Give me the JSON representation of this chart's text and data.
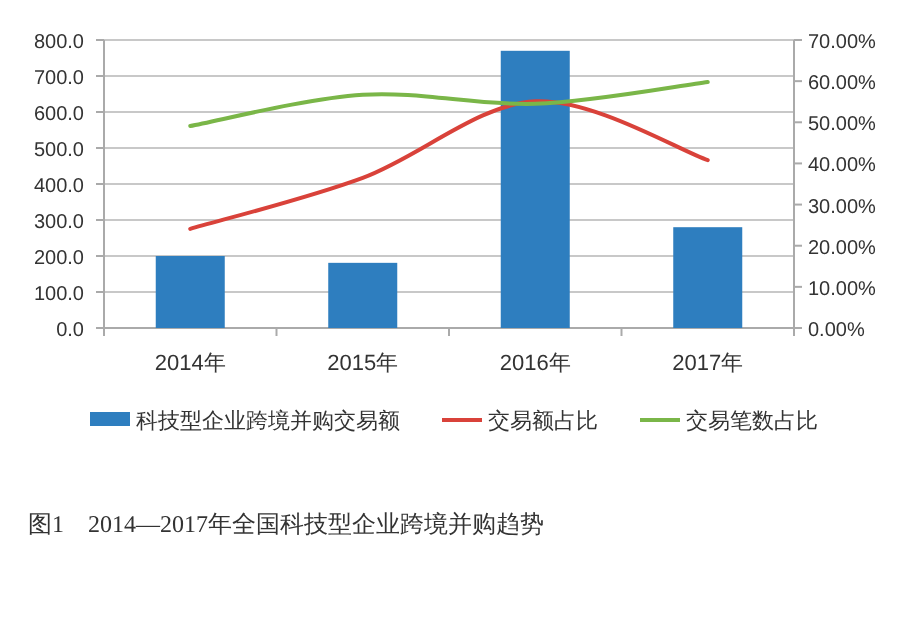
{
  "chart_data": {
    "type": "bar",
    "title": "图1　2014—2017年全国科技型企业跨境并购趋势",
    "categories": [
      "2014年",
      "2015年",
      "2016年",
      "2017年"
    ],
    "series": [
      {
        "name": "科技型企业跨境并购交易额",
        "color": "#2e7ebf",
        "values": [
          200,
          181,
          770,
          280
        ]
      },
      {
        "name": "交易额占比",
        "type": "line",
        "axis": "y2",
        "color": "#d9423a",
        "values": [
          24.1,
          36.5,
          55.1,
          40.8
        ]
      },
      {
        "name": "交易笔数占比",
        "type": "line",
        "axis": "y2",
        "color": "#7ab648",
        "values": [
          49.1,
          56.7,
          54.5,
          59.8
        ]
      }
    ],
    "ylim": [
      0,
      800
    ],
    "yticks": [
      {
        "value": 0,
        "label": "0.0"
      },
      {
        "value": 100,
        "label": "100.0"
      },
      {
        "value": 200,
        "label": "200.0"
      },
      {
        "value": 300,
        "label": "300.0"
      },
      {
        "value": 400,
        "label": "400.0"
      },
      {
        "value": 500,
        "label": "500.0"
      },
      {
        "value": 600,
        "label": "600.0"
      },
      {
        "value": 700,
        "label": "700.0"
      },
      {
        "value": 800,
        "label": "800.0"
      }
    ],
    "y2lim": [
      0,
      70
    ],
    "y2ticks": [
      {
        "value": 0,
        "label": "0.00%"
      },
      {
        "value": 10,
        "label": "10.00%"
      },
      {
        "value": 20,
        "label": "20.00%"
      },
      {
        "value": 30,
        "label": "30.00%"
      },
      {
        "value": 40,
        "label": "40.00%"
      },
      {
        "value": 50,
        "label": "50.00%"
      },
      {
        "value": 60,
        "label": "60.00%"
      },
      {
        "value": 70,
        "label": "70.00%"
      }
    ],
    "grid": "y",
    "legend": "bottom",
    "line_style": "solid",
    "marker": "none"
  }
}
